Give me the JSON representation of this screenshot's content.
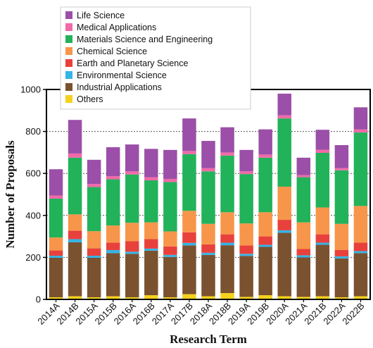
{
  "chart_data": {
    "type": "bar",
    "stacked": true,
    "xlabel": "Research Term",
    "ylabel": "Number of Proposals",
    "ylim": [
      0,
      1000
    ],
    "yticks": [
      0,
      200,
      400,
      600,
      800,
      1000
    ],
    "grid": "horizontal-dotted",
    "legend_position": "top-left",
    "categories": [
      "2014A",
      "2014B",
      "2015A",
      "2015B",
      "2016A",
      "2016B",
      "2017A",
      "2017B",
      "2018A",
      "2018B",
      "2019A",
      "2019B",
      "2020A",
      "2021A",
      "2021B",
      "2022A",
      "2022B"
    ],
    "series": [
      {
        "name": "Others",
        "color": "#f5d21e",
        "values": [
          10,
          15,
          10,
          15,
          10,
          20,
          10,
          25,
          15,
          30,
          12,
          20,
          15,
          12,
          15,
          10,
          15
        ]
      },
      {
        "name": "Industrial Applications",
        "color": "#7a5230",
        "values": [
          188,
          257,
          188,
          205,
          207,
          212,
          192,
          232,
          197,
          228,
          195,
          230,
          302,
          188,
          245,
          185,
          205
        ]
      },
      {
        "name": "Environmental Science",
        "color": "#36b4e6",
        "values": [
          10,
          15,
          10,
          15,
          10,
          10,
          10,
          12,
          10,
          12,
          10,
          10,
          12,
          10,
          10,
          10,
          10
        ]
      },
      {
        "name": "Earth and Planetary Science",
        "color": "#e8413c",
        "values": [
          25,
          40,
          35,
          35,
          50,
          45,
          40,
          50,
          40,
          40,
          40,
          40,
          50,
          30,
          40,
          30,
          40
        ]
      },
      {
        "name": "Chemical Science",
        "color": "#f7964a",
        "values": [
          62,
          78,
          82,
          82,
          88,
          80,
          72,
          103,
          98,
          105,
          105,
          115,
          158,
          127,
          128,
          125,
          175
        ]
      },
      {
        "name": "Materials Science and Engineering",
        "color": "#22b25a",
        "values": [
          185,
          270,
          210,
          220,
          230,
          200,
          235,
          270,
          250,
          270,
          235,
          260,
          325,
          215,
          260,
          255,
          350
        ]
      },
      {
        "name": "Medical Applications",
        "color": "#f06aa8",
        "values": [
          15,
          20,
          15,
          15,
          15,
          15,
          15,
          15,
          15,
          15,
          13,
          15,
          15,
          10,
          15,
          10,
          15
        ]
      },
      {
        "name": "Life Science",
        "color": "#9b4fa8",
        "values": [
          125,
          160,
          115,
          138,
          128,
          135,
          138,
          155,
          130,
          120,
          102,
          120,
          103,
          83,
          95,
          110,
          105
        ]
      }
    ],
    "legend_order": [
      "Life Science",
      "Medical Applications",
      "Materials Science and Engineering",
      "Chemical Science",
      "Earth and Planetary Science",
      "Environmental Science",
      "Industrial Applications",
      "Others"
    ]
  }
}
